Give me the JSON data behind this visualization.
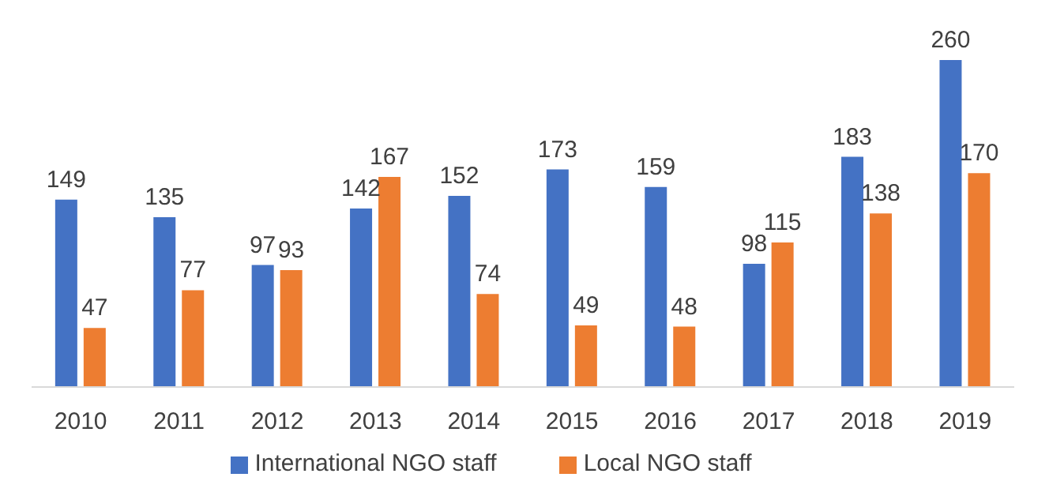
{
  "chart_data": {
    "type": "bar",
    "categories": [
      "2010",
      "2011",
      "2012",
      "2013",
      "2014",
      "2015",
      "2016",
      "2017",
      "2018",
      "2019"
    ],
    "series": [
      {
        "name": "International NGO staff",
        "color": "#4472c4",
        "values": [
          149,
          135,
          97,
          142,
          152,
          173,
          159,
          98,
          183,
          260
        ]
      },
      {
        "name": "Local NGO staff",
        "color": "#ed7d31",
        "values": [
          47,
          77,
          93,
          167,
          74,
          49,
          48,
          115,
          138,
          170
        ]
      }
    ],
    "data_labels": true,
    "legend": "bottom",
    "grid": false
  }
}
